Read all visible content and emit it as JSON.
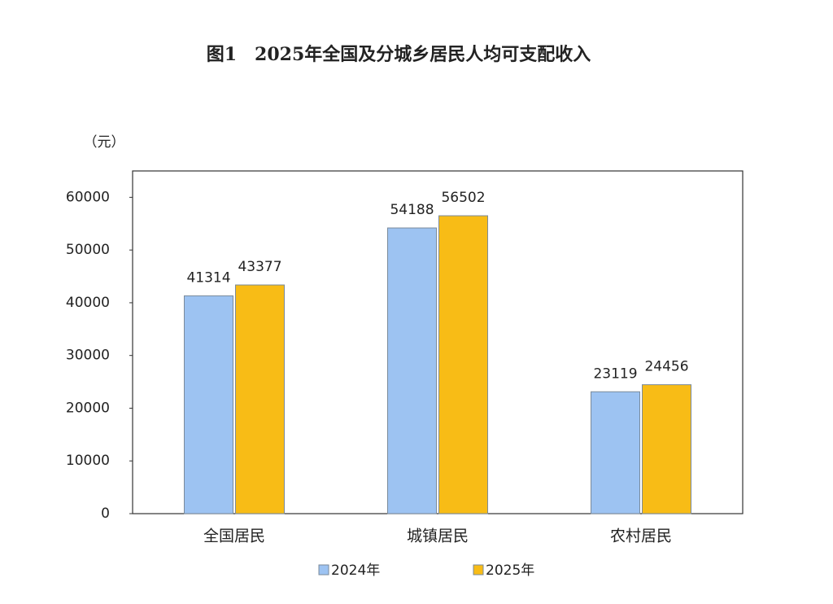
{
  "chart_data": {
    "type": "bar",
    "title": "图1　2025年全国及分城乡居民人均可支配收入",
    "y_label": "（元）",
    "categories": [
      "全国居民",
      "城镇居民",
      "农村居民"
    ],
    "series": [
      {
        "name": "2024年",
        "color": "#9dc3f2",
        "values": [
          41314,
          54188,
          23119
        ]
      },
      {
        "name": "2025年",
        "color": "#f8bc16",
        "values": [
          43377,
          56502,
          24456
        ]
      }
    ],
    "ylim": [
      0,
      65000
    ],
    "yticks": [
      0,
      10000,
      20000,
      30000,
      40000,
      50000,
      60000
    ],
    "grid": false,
    "legend": "bottom"
  }
}
